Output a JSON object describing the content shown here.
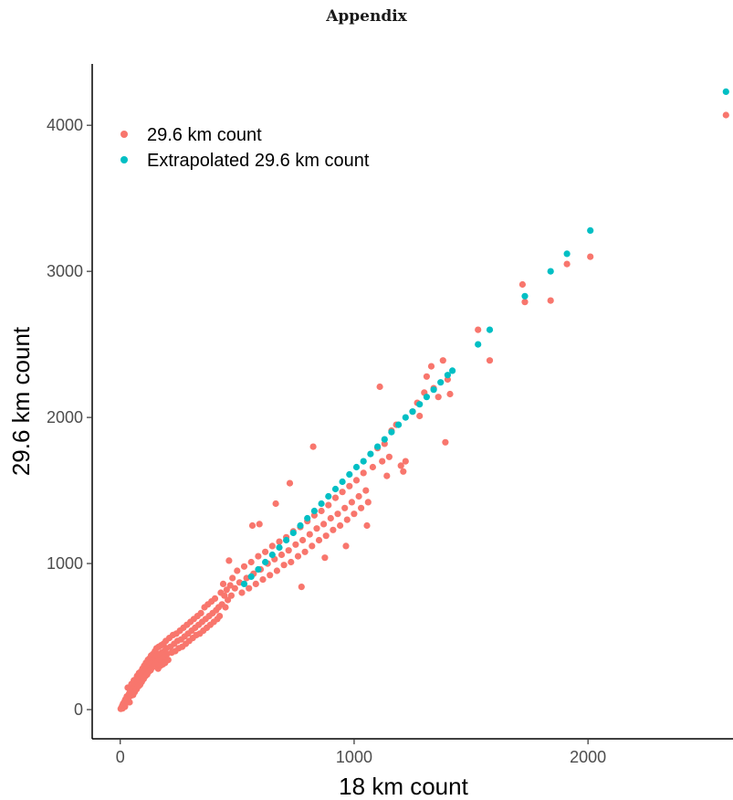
{
  "page": {
    "title": "Appendix"
  },
  "chart_data": {
    "type": "scatter",
    "title": "",
    "xlabel": "18 km count",
    "ylabel": "29.6 km count",
    "xlim": [
      -120,
      2620
    ],
    "ylim": [
      -200,
      4420
    ],
    "xticks": [
      0,
      1000,
      2000
    ],
    "yticks": [
      0,
      1000,
      2000,
      3000,
      4000
    ],
    "xtick_labels": [
      "0",
      "1000",
      "2000"
    ],
    "ytick_labels": [
      "0",
      "1000",
      "2000",
      "3000",
      "4000"
    ],
    "grid": false,
    "legend_position": "top-left",
    "series": [
      {
        "name": "29.6 km count",
        "color": "#F8766D",
        "points": [
          [
            2,
            5
          ],
          [
            5,
            12
          ],
          [
            8,
            25
          ],
          [
            10,
            8
          ],
          [
            12,
            40
          ],
          [
            15,
            30
          ],
          [
            18,
            55
          ],
          [
            20,
            20
          ],
          [
            22,
            70
          ],
          [
            25,
            45
          ],
          [
            28,
            90
          ],
          [
            30,
            60
          ],
          [
            32,
            150
          ],
          [
            35,
            80
          ],
          [
            38,
            110
          ],
          [
            40,
            50
          ],
          [
            42,
            130
          ],
          [
            45,
            95
          ],
          [
            48,
            175
          ],
          [
            50,
            120
          ],
          [
            52,
            140
          ],
          [
            55,
            100
          ],
          [
            58,
            200
          ],
          [
            60,
            160
          ],
          [
            62,
            120
          ],
          [
            65,
            180
          ],
          [
            68,
            210
          ],
          [
            70,
            140
          ],
          [
            72,
            230
          ],
          [
            75,
            190
          ],
          [
            78,
            160
          ],
          [
            80,
            250
          ],
          [
            82,
            200
          ],
          [
            85,
            170
          ],
          [
            88,
            260
          ],
          [
            90,
            230
          ],
          [
            92,
            190
          ],
          [
            95,
            280
          ],
          [
            98,
            250
          ],
          [
            100,
            210
          ],
          [
            102,
            300
          ],
          [
            105,
            260
          ],
          [
            108,
            230
          ],
          [
            110,
            320
          ],
          [
            112,
            280
          ],
          [
            115,
            240
          ],
          [
            118,
            340
          ],
          [
            120,
            290
          ],
          [
            122,
            260
          ],
          [
            125,
            350
          ],
          [
            128,
            310
          ],
          [
            130,
            270
          ],
          [
            132,
            370
          ],
          [
            135,
            320
          ],
          [
            138,
            290
          ],
          [
            140,
            380
          ],
          [
            142,
            340
          ],
          [
            145,
            300
          ],
          [
            148,
            400
          ],
          [
            150,
            350
          ],
          [
            152,
            310
          ],
          [
            155,
            420
          ],
          [
            158,
            370
          ],
          [
            160,
            330
          ],
          [
            162,
            280
          ],
          [
            165,
            430
          ],
          [
            168,
            380
          ],
          [
            170,
            340
          ],
          [
            172,
            300
          ],
          [
            175,
            440
          ],
          [
            178,
            390
          ],
          [
            180,
            350
          ],
          [
            182,
            310
          ],
          [
            185,
            450
          ],
          [
            188,
            400
          ],
          [
            190,
            360
          ],
          [
            192,
            320
          ],
          [
            195,
            470
          ],
          [
            198,
            420
          ],
          [
            200,
            380
          ],
          [
            205,
            340
          ],
          [
            210,
            490
          ],
          [
            215,
            430
          ],
          [
            220,
            390
          ],
          [
            225,
            510
          ],
          [
            230,
            450
          ],
          [
            235,
            400
          ],
          [
            240,
            520
          ],
          [
            245,
            470
          ],
          [
            250,
            420
          ],
          [
            255,
            540
          ],
          [
            260,
            480
          ],
          [
            265,
            430
          ],
          [
            270,
            560
          ],
          [
            275,
            500
          ],
          [
            280,
            450
          ],
          [
            285,
            580
          ],
          [
            290,
            520
          ],
          [
            295,
            470
          ],
          [
            300,
            600
          ],
          [
            305,
            540
          ],
          [
            310,
            490
          ],
          [
            315,
            620
          ],
          [
            320,
            560
          ],
          [
            325,
            510
          ],
          [
            330,
            640
          ],
          [
            335,
            580
          ],
          [
            340,
            520
          ],
          [
            345,
            660
          ],
          [
            350,
            600
          ],
          [
            355,
            540
          ],
          [
            360,
            700
          ],
          [
            365,
            620
          ],
          [
            370,
            560
          ],
          [
            375,
            720
          ],
          [
            380,
            640
          ],
          [
            385,
            580
          ],
          [
            390,
            740
          ],
          [
            395,
            660
          ],
          [
            400,
            600
          ],
          [
            405,
            760
          ],
          [
            410,
            680
          ],
          [
            415,
            620
          ],
          [
            420,
            700
          ],
          [
            425,
            640
          ],
          [
            430,
            800
          ],
          [
            435,
            720
          ],
          [
            440,
            860
          ],
          [
            445,
            780
          ],
          [
            450,
            700
          ],
          [
            455,
            820
          ],
          [
            460,
            750
          ],
          [
            465,
            1020
          ],
          [
            470,
            850
          ],
          [
            475,
            780
          ],
          [
            480,
            900
          ],
          [
            490,
            830
          ],
          [
            500,
            950
          ],
          [
            510,
            870
          ],
          [
            520,
            800
          ],
          [
            530,
            980
          ],
          [
            540,
            900
          ],
          [
            550,
            830
          ],
          [
            560,
            1010
          ],
          [
            565,
            1260
          ],
          [
            570,
            930
          ],
          [
            580,
            860
          ],
          [
            590,
            1050
          ],
          [
            595,
            1270
          ],
          [
            600,
            960
          ],
          [
            610,
            890
          ],
          [
            620,
            1080
          ],
          [
            630,
            1000
          ],
          [
            640,
            920
          ],
          [
            650,
            1120
          ],
          [
            660,
            1030
          ],
          [
            665,
            1410
          ],
          [
            670,
            950
          ],
          [
            680,
            1150
          ],
          [
            690,
            1060
          ],
          [
            700,
            990
          ],
          [
            710,
            1180
          ],
          [
            720,
            1090
          ],
          [
            725,
            1550
          ],
          [
            730,
            1010
          ],
          [
            740,
            1220
          ],
          [
            750,
            1130
          ],
          [
            760,
            1050
          ],
          [
            770,
            1250
          ],
          [
            775,
            840
          ],
          [
            780,
            1160
          ],
          [
            790,
            1080
          ],
          [
            800,
            1290
          ],
          [
            810,
            1200
          ],
          [
            820,
            1120
          ],
          [
            825,
            1800
          ],
          [
            830,
            1330
          ],
          [
            840,
            1240
          ],
          [
            850,
            1160
          ],
          [
            860,
            1360
          ],
          [
            870,
            1270
          ],
          [
            875,
            1040
          ],
          [
            880,
            1190
          ],
          [
            890,
            1400
          ],
          [
            900,
            1310
          ],
          [
            910,
            1230
          ],
          [
            920,
            1450
          ],
          [
            930,
            1340
          ],
          [
            940,
            1260
          ],
          [
            950,
            1490
          ],
          [
            960,
            1380
          ],
          [
            965,
            1120
          ],
          [
            970,
            1300
          ],
          [
            980,
            1530
          ],
          [
            990,
            1420
          ],
          [
            1000,
            1340
          ],
          [
            1010,
            1570
          ],
          [
            1020,
            1460
          ],
          [
            1030,
            1380
          ],
          [
            1040,
            1620
          ],
          [
            1050,
            1500
          ],
          [
            1055,
            1260
          ],
          [
            1060,
            1420
          ],
          [
            1080,
            1660
          ],
          [
            1100,
            1790
          ],
          [
            1110,
            2210
          ],
          [
            1120,
            1700
          ],
          [
            1130,
            1820
          ],
          [
            1140,
            1600
          ],
          [
            1150,
            1730
          ],
          [
            1160,
            1910
          ],
          [
            1180,
            1950
          ],
          [
            1200,
            1670
          ],
          [
            1210,
            1630
          ],
          [
            1220,
            1700
          ],
          [
            1250,
            2040
          ],
          [
            1270,
            2100
          ],
          [
            1280,
            2010
          ],
          [
            1300,
            2170
          ],
          [
            1310,
            2280
          ],
          [
            1330,
            2350
          ],
          [
            1340,
            2200
          ],
          [
            1360,
            2140
          ],
          [
            1380,
            2390
          ],
          [
            1390,
            1830
          ],
          [
            1400,
            2260
          ],
          [
            1410,
            2160
          ],
          [
            1530,
            2600
          ],
          [
            1580,
            2390
          ],
          [
            1720,
            2910
          ],
          [
            1730,
            2790
          ],
          [
            1840,
            2800
          ],
          [
            1910,
            3050
          ],
          [
            2010,
            3100
          ],
          [
            2590,
            4070
          ]
        ]
      },
      {
        "name": "Extrapolated 29.6 km count",
        "color": "#00BFC4",
        "points": [
          [
            530,
            860
          ],
          [
            560,
            910
          ],
          [
            590,
            960
          ],
          [
            620,
            1010
          ],
          [
            650,
            1060
          ],
          [
            680,
            1110
          ],
          [
            710,
            1160
          ],
          [
            740,
            1210
          ],
          [
            770,
            1260
          ],
          [
            800,
            1310
          ],
          [
            830,
            1360
          ],
          [
            860,
            1410
          ],
          [
            890,
            1460
          ],
          [
            920,
            1510
          ],
          [
            950,
            1560
          ],
          [
            980,
            1610
          ],
          [
            1010,
            1660
          ],
          [
            1040,
            1700
          ],
          [
            1070,
            1750
          ],
          [
            1100,
            1800
          ],
          [
            1130,
            1850
          ],
          [
            1160,
            1900
          ],
          [
            1190,
            1950
          ],
          [
            1220,
            2000
          ],
          [
            1250,
            2040
          ],
          [
            1280,
            2090
          ],
          [
            1310,
            2140
          ],
          [
            1340,
            2190
          ],
          [
            1370,
            2240
          ],
          [
            1400,
            2290
          ],
          [
            1420,
            2320
          ],
          [
            1530,
            2500
          ],
          [
            1580,
            2600
          ],
          [
            1730,
            2830
          ],
          [
            1840,
            3000
          ],
          [
            1910,
            3120
          ],
          [
            2010,
            3280
          ],
          [
            2590,
            4230
          ]
        ]
      }
    ]
  }
}
